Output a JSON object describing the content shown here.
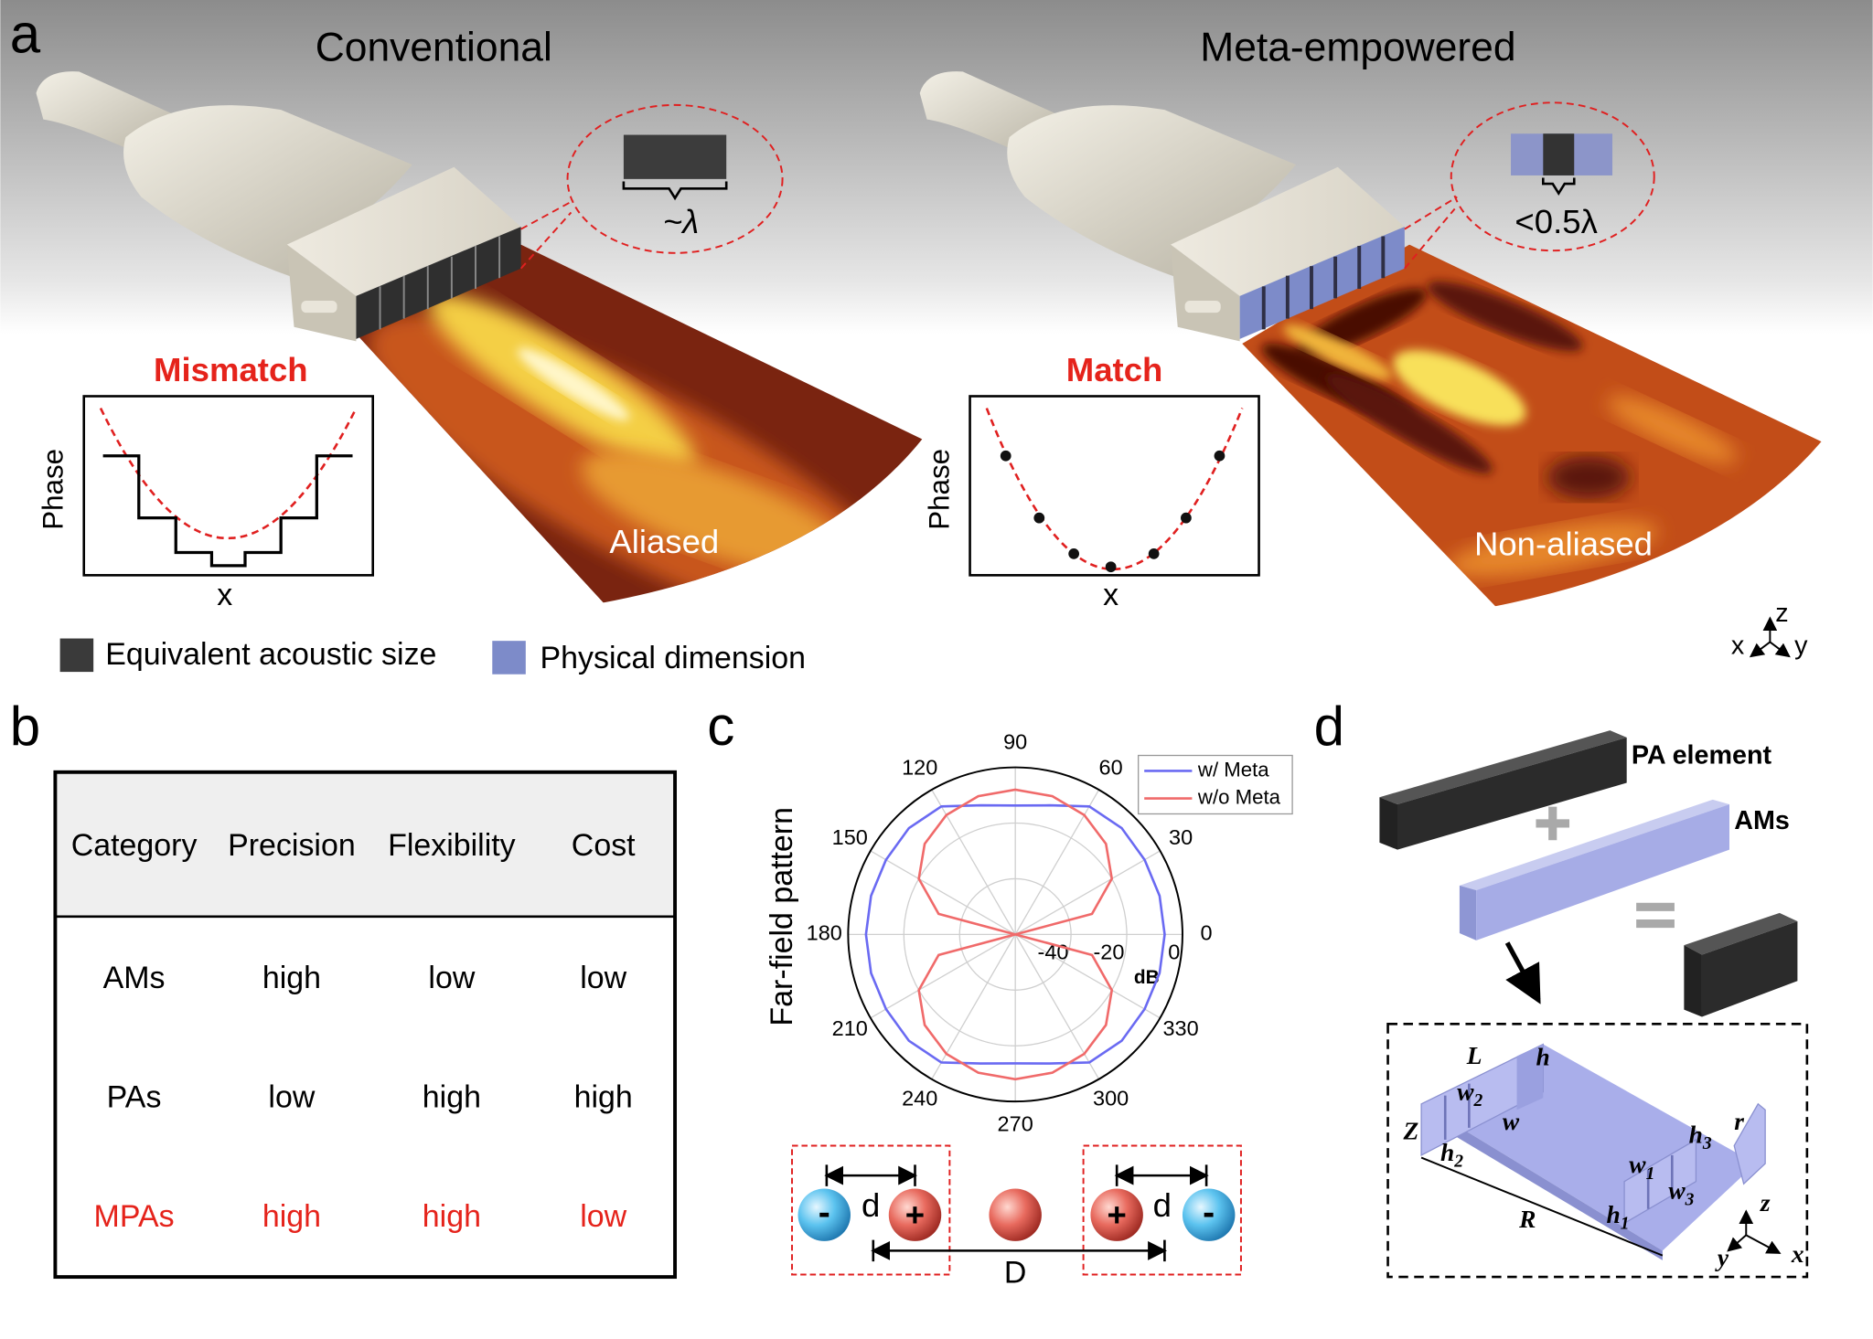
{
  "panel_a": {
    "label": "a",
    "left_title": "Conventional",
    "right_title": "Meta-empowered",
    "left_callout": "~λ",
    "right_callout": "<0.5λ",
    "left_status": "Mismatch",
    "right_status": "Match",
    "y_label": "Phase",
    "x_label": "x",
    "left_beam": "Aliased",
    "right_beam": "Non-aliased",
    "legend": [
      "Equivalent acoustic size",
      "Physical dimension"
    ],
    "axes": [
      "x",
      "y",
      "z"
    ]
  },
  "panel_b": {
    "label": "b",
    "table": {
      "header": [
        "Category",
        "Precision",
        "Flexibility",
        "Cost"
      ],
      "rows": [
        [
          "AMs",
          "high",
          "low",
          "low"
        ],
        [
          "PAs",
          "low",
          "high",
          "high"
        ],
        [
          "MPAs",
          "high",
          "high",
          "low"
        ]
      ]
    }
  },
  "panel_c": {
    "label": "c",
    "chart_data": {
      "type": "polar",
      "y_label": "Far-field pattern",
      "r_unit": "dB",
      "rlim": [
        -60,
        0
      ],
      "rticks": [
        -40,
        -20,
        0
      ],
      "theta_ticks": [
        0,
        30,
        60,
        90,
        120,
        150,
        180,
        210,
        240,
        270,
        300,
        330
      ],
      "theta": [
        0,
        15,
        30,
        45,
        60,
        75,
        90,
        105,
        120,
        135,
        150,
        165,
        180,
        195,
        210,
        225,
        240,
        255,
        270,
        285,
        300,
        315,
        330,
        345
      ],
      "series": [
        {
          "name": "w/ Meta",
          "color": "#6a6af2",
          "values": [
            -6.4,
            -6.4,
            -6.4,
            -6,
            -6.9,
            -12,
            -13.7,
            -12,
            -6.9,
            -6,
            -6.4,
            -6.4,
            -6.4,
            -6.4,
            -6.4,
            -6,
            -6.9,
            -12,
            -13.7,
            -12,
            -6.9,
            -6,
            -6.4,
            -6.4
          ]
        },
        {
          "name": "w/o Meta",
          "color": "#f06a6a",
          "values": [
            -60,
            -31.5,
            -20,
            -14,
            -10.5,
            -8.6,
            -8,
            -8.6,
            -10.5,
            -14,
            -20,
            -31.5,
            -60,
            -31.5,
            -20,
            -14,
            -10.5,
            -8.6,
            -8,
            -8.6,
            -10.5,
            -14,
            -20,
            -31.5
          ]
        }
      ]
    },
    "dipole": {
      "minus": "-",
      "plus": "+",
      "spacing": "d",
      "distance": "D"
    }
  },
  "panel_d": {
    "label": "d",
    "parts": [
      "PA element",
      "AMs"
    ],
    "dims": [
      {
        "text": "L"
      },
      {
        "text": "h"
      },
      {
        "text": "w",
        "sub": "2"
      },
      {
        "text": "w"
      },
      {
        "text": "Z"
      },
      {
        "text": "h",
        "sub": "2"
      },
      {
        "text": "h",
        "sub": "3"
      },
      {
        "text": "r"
      },
      {
        "text": "w",
        "sub": "1"
      },
      {
        "text": "w",
        "sub": "3"
      },
      {
        "text": "h",
        "sub": "1"
      },
      {
        "text": "R"
      }
    ],
    "axes": [
      "z",
      "y",
      "x"
    ]
  }
}
